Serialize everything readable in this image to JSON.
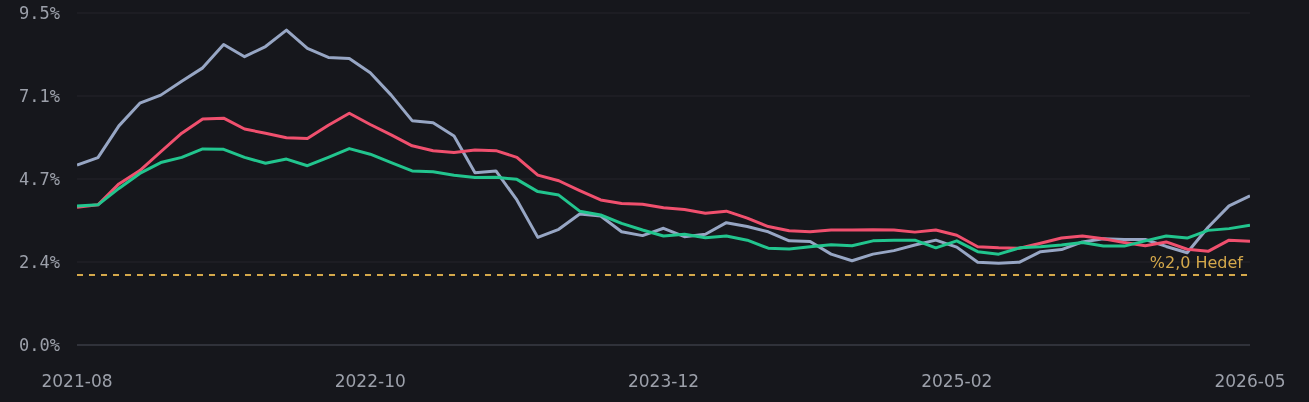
{
  "chart_data": {
    "type": "line",
    "categories": [
      "2021-08",
      null,
      null,
      null,
      null,
      null,
      null,
      null,
      null,
      null,
      null,
      null,
      null,
      null,
      "2022-10",
      null,
      null,
      null,
      null,
      null,
      null,
      null,
      null,
      null,
      null,
      null,
      null,
      null,
      "2023-12",
      null,
      null,
      null,
      null,
      null,
      null,
      null,
      null,
      null,
      null,
      null,
      null,
      null,
      "2025-02",
      null,
      null,
      null,
      null,
      null,
      null,
      null,
      null,
      null,
      null,
      null,
      null,
      null,
      "2026-05"
    ],
    "series": [
      {
        "color": "#97a6c4",
        "values": [
          5.15,
          5.36,
          6.27,
          6.92,
          7.15,
          7.55,
          7.93,
          8.6,
          8.25,
          8.54,
          9.01,
          8.49,
          8.23,
          8.2,
          7.79,
          7.15,
          6.42,
          6.36,
          5.98,
          4.93,
          4.98,
          4.15,
          3.08,
          3.31,
          3.75,
          3.69,
          3.24,
          3.13,
          3.34,
          3.1,
          3.17,
          3.5,
          3.39,
          3.24,
          2.98,
          2.96,
          2.6,
          2.41,
          2.6,
          2.7,
          2.86,
          3.0,
          2.8,
          2.37,
          2.34,
          2.37,
          2.67,
          2.73,
          2.95,
          3.04,
          3.02,
          3.02,
          2.82,
          2.64,
          3.37,
          3.98,
          4.27
        ]
      },
      {
        "color": "#f0506e",
        "values": [
          3.94,
          4.01,
          4.61,
          4.99,
          5.53,
          6.06,
          6.47,
          6.49,
          6.18,
          6.06,
          5.93,
          5.91,
          6.29,
          6.63,
          6.31,
          6.01,
          5.7,
          5.56,
          5.51,
          5.58,
          5.56,
          5.37,
          4.86,
          4.7,
          4.42,
          4.15,
          4.05,
          4.03,
          3.93,
          3.88,
          3.77,
          3.83,
          3.63,
          3.39,
          3.27,
          3.24,
          3.29,
          3.29,
          3.3,
          3.29,
          3.23,
          3.29,
          3.14,
          2.81,
          2.78,
          2.77,
          2.91,
          3.06,
          3.12,
          3.04,
          2.93,
          2.84,
          2.95,
          2.74,
          2.68,
          3.0,
          2.97
        ]
      },
      {
        "color": "#22c58e",
        "values": [
          3.98,
          4.01,
          4.48,
          4.91,
          5.22,
          5.37,
          5.61,
          5.6,
          5.37,
          5.2,
          5.32,
          5.13,
          5.37,
          5.62,
          5.46,
          5.22,
          4.98,
          4.96,
          4.86,
          4.79,
          4.8,
          4.74,
          4.39,
          4.29,
          3.83,
          3.72,
          3.48,
          3.29,
          3.12,
          3.17,
          3.07,
          3.12,
          3.0,
          2.77,
          2.75,
          2.81,
          2.87,
          2.84,
          2.98,
          3.0,
          3.0,
          2.78,
          2.98,
          2.67,
          2.6,
          2.78,
          2.81,
          2.86,
          2.93,
          2.83,
          2.83,
          2.98,
          3.12,
          3.06,
          3.28,
          3.33,
          3.43
        ]
      }
    ],
    "ylim": [
      0,
      9.5
    ],
    "yticks": [
      {
        "value": 0,
        "label": "0.0%"
      },
      {
        "value": 2.375,
        "label": "2.4%"
      },
      {
        "value": 4.75,
        "label": "4.7%"
      },
      {
        "value": 7.125,
        "label": "7.1%"
      },
      {
        "value": 9.5,
        "label": "9.5%"
      }
    ],
    "grid": "y",
    "marker": "none",
    "line_style": "solid",
    "ref_lines": [
      {
        "axis": "y",
        "value": 2.0,
        "label": "%2,0 Hedef",
        "color": "#d4a84b",
        "line_style": "dashed"
      }
    ]
  }
}
